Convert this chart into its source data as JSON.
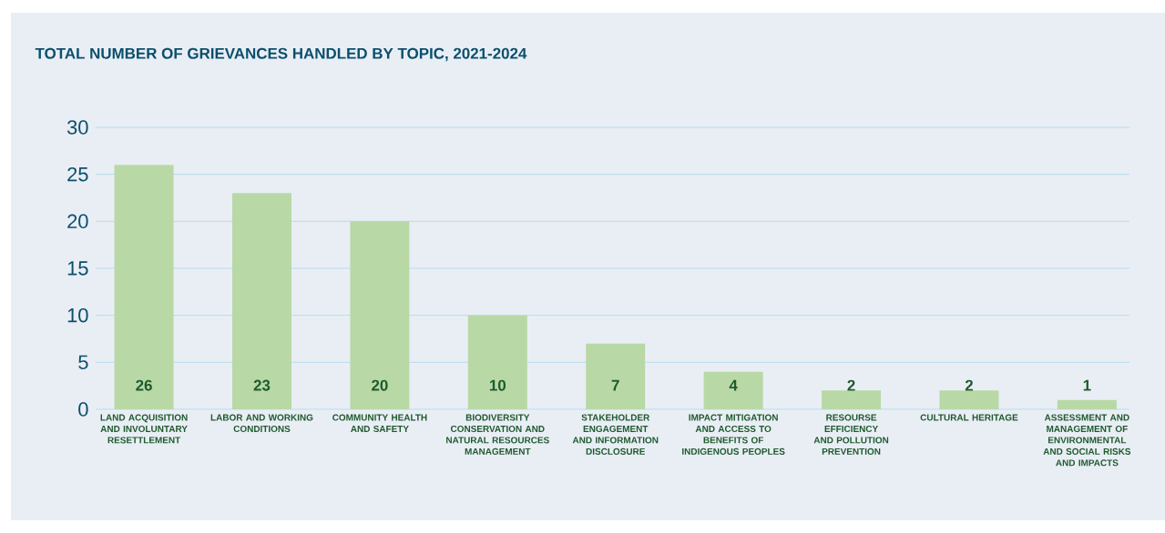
{
  "chart_data": {
    "type": "bar",
    "title": "TOTAL NUMBER OF GRIEVANCES HANDLED BY TOPIC, 2021-2024",
    "categories": [
      "LAND ACQUISITION AND INVOLUNTARY RESETTLEMENT",
      "LABOR AND WORKING CONDITIONS",
      "COMMUNITY HEALTH AND SAFETY",
      "BIODIVERSITY CONSERVATION AND NATURAL RESOURCES MANAGEMENT",
      "STAKEHOLDER ENGAGEMENT AND INFORMATION DISCLOSURE",
      "IMPACT MITIGATION AND ACCESS TO BENEFITS OF INDIGENOUS PEOPLES",
      "RESOURSE EFFICIENCY AND POLLUTION PREVENTION",
      "CULTURAL HERITAGE",
      "ASSESSMENT AND MANAGEMENT OF ENVIRONMENTAL AND SOCIAL RISKS AND IMPACTS"
    ],
    "values": [
      26,
      23,
      20,
      10,
      7,
      4,
      2,
      2,
      1
    ],
    "color": "#b8d9a6",
    "data_labels": true,
    "ylim": [
      0,
      30
    ],
    "yticks": [
      0,
      5,
      10,
      15,
      20,
      25,
      30
    ],
    "grid": "y"
  }
}
